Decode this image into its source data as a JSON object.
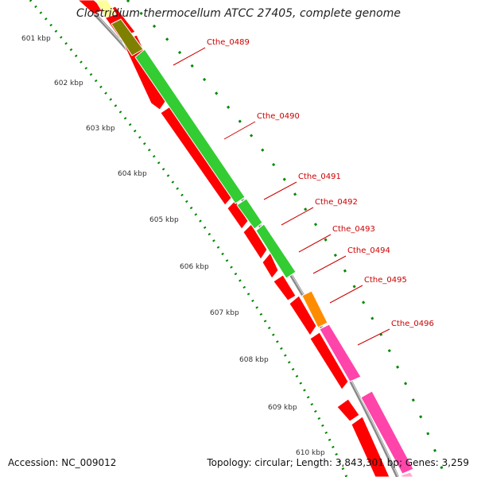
{
  "title": "Clostridium thermocellum ATCC 27405, complete genome",
  "footer": {
    "accession": "Accession: NC_009012",
    "topology": "Topology: circular; Length: 3,843,301 bp; Genes: 3,259"
  },
  "colors": {
    "backbone": "#999999",
    "cds": "#ff0000",
    "green": "#33cc33",
    "olive": "#808000",
    "orange": "#ff8c00",
    "magenta": "#ff44aa",
    "label": "#cc0000",
    "tick": "#008800"
  },
  "ticks": [
    {
      "label": "601 kbp",
      "kbp": 601
    },
    {
      "label": "602 kbp",
      "kbp": 602
    },
    {
      "label": "603 kbp",
      "kbp": 603
    },
    {
      "label": "604 kbp",
      "kbp": 604
    },
    {
      "label": "605 kbp",
      "kbp": 605
    },
    {
      "label": "606 kbp",
      "kbp": 606
    },
    {
      "label": "607 kbp",
      "kbp": 607
    },
    {
      "label": "608 kbp",
      "kbp": 608
    },
    {
      "label": "609 kbp",
      "kbp": 609
    },
    {
      "label": "610 kbp",
      "kbp": 610
    }
  ],
  "features": [
    {
      "label": "Cthe_0489",
      "color": "green"
    },
    {
      "label": "Cthe_0490",
      "color": "green"
    },
    {
      "label": "Cthe_0491",
      "color": "green"
    },
    {
      "label": "Cthe_0492",
      "color": "green"
    },
    {
      "label": "Cthe_0493",
      "color": "green"
    },
    {
      "label": "Cthe_0494",
      "color": "green"
    },
    {
      "label": "Cthe_0495",
      "color": "orange"
    },
    {
      "label": "Cthe_0496",
      "color": "magenta"
    }
  ]
}
